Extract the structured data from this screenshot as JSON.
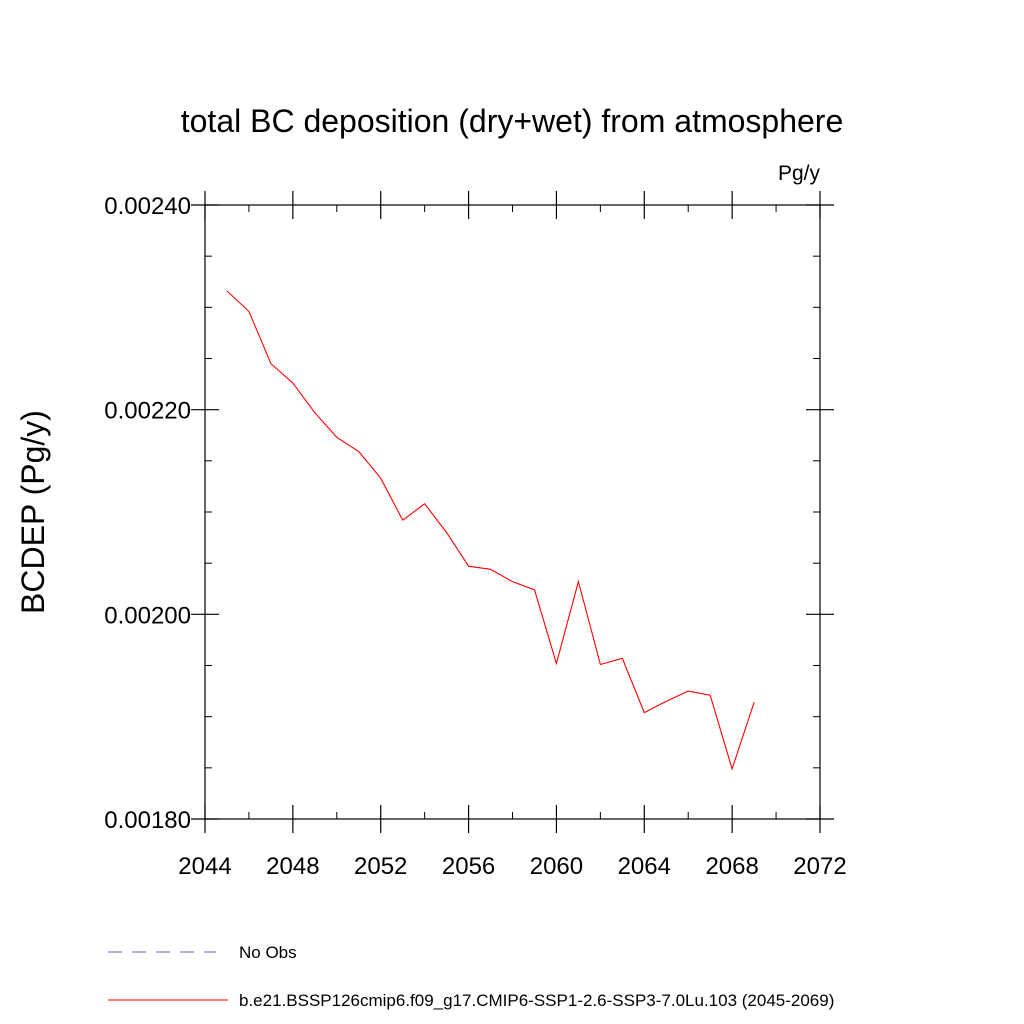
{
  "chart_data": {
    "type": "line",
    "title": "total BC deposition (dry+wet) from atmosphere",
    "units_label": "Pg/y",
    "ylabel": "BCDEP  (Pg/y)",
    "xlabel": "",
    "xlim": [
      2044,
      2072
    ],
    "ylim": [
      0.0018,
      0.0024
    ],
    "x_ticks": [
      2044,
      2048,
      2052,
      2056,
      2060,
      2064,
      2068,
      2072
    ],
    "x_tick_labels": [
      "2044",
      "2048",
      "2052",
      "2056",
      "2060",
      "2064",
      "2068",
      "2072"
    ],
    "y_ticks": [
      0.0018,
      0.002,
      0.0022,
      0.0024
    ],
    "y_tick_labels": [
      "0.00180",
      "0.00200",
      "0.00220",
      "0.00240"
    ],
    "y_minor_step": 5e-05,
    "x_minor_step": 2,
    "grid": false,
    "legend_position": "bottom",
    "series": [
      {
        "name": "b.e21.BSSP126cmip6.f09_g17.CMIP6-SSP1-2.6-SSP3-7.0Lu.103 (2045-2069)",
        "color": "#ff0000",
        "dash": "solid",
        "x": [
          2045,
          2046,
          2047,
          2048,
          2049,
          2050,
          2051,
          2052,
          2053,
          2054,
          2055,
          2056,
          2057,
          2058,
          2059,
          2060,
          2061,
          2062,
          2063,
          2064,
          2065,
          2066,
          2067,
          2068,
          2069
        ],
        "y": [
          0.002316,
          0.002296,
          0.002245,
          0.002226,
          0.002197,
          0.002173,
          0.002159,
          0.002133,
          0.002092,
          0.002108,
          0.00208,
          0.002047,
          0.002044,
          0.002032,
          0.002024,
          0.001952,
          0.002032,
          0.001951,
          0.001957,
          0.001904,
          0.001915,
          0.001925,
          0.001921,
          0.001849,
          0.001914
        ]
      }
    ],
    "legend": [
      {
        "label": "No Obs",
        "color": "#6a5acd",
        "dash": "dashed"
      },
      {
        "label": "b.e21.BSSP126cmip6.f09_g17.CMIP6-SSP1-2.6-SSP3-7.0Lu.103 (2045-2069)",
        "color": "#ff0000",
        "dash": "solid"
      }
    ]
  }
}
